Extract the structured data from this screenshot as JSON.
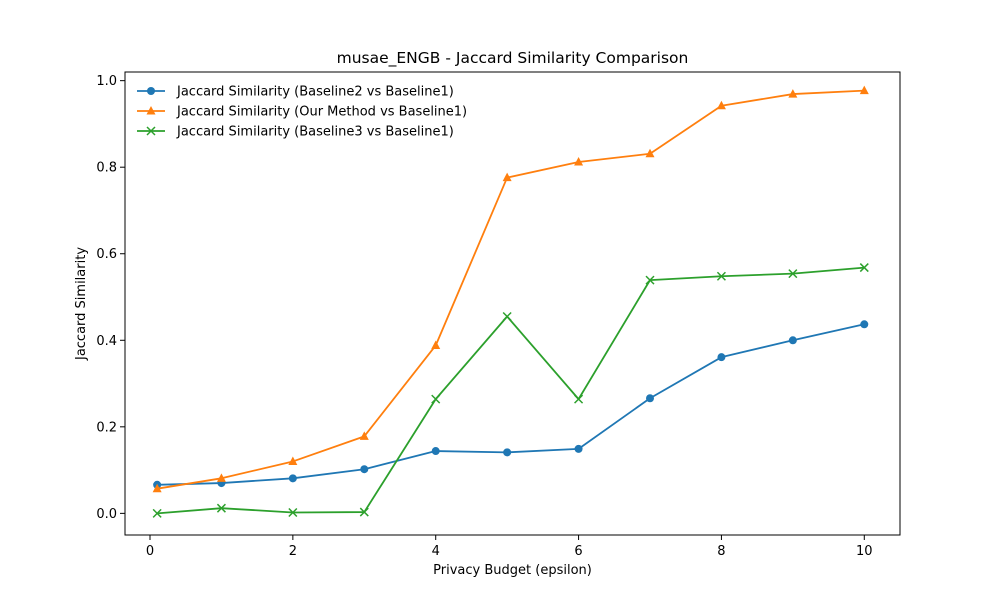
{
  "chart_data": {
    "type": "line",
    "title": "musae_ENGB - Jaccard Similarity Comparison",
    "xlabel": "Privacy Budget (epsilon)",
    "ylabel": "Jaccard Similarity",
    "xlim": [
      -0.35,
      10.5
    ],
    "ylim": [
      -0.05,
      1.02
    ],
    "xticks": [
      0,
      2,
      4,
      6,
      8,
      10
    ],
    "yticks": [
      0.0,
      0.2,
      0.4,
      0.6,
      0.8,
      1.0
    ],
    "x": [
      0.1,
      1,
      2,
      3,
      4,
      5,
      6,
      7,
      8,
      9,
      10
    ],
    "legend_position": "upper left",
    "grid": false,
    "series": [
      {
        "name": "Jaccard Similarity (Baseline2 vs Baseline1)",
        "color": "#1f77b4",
        "marker": "circle",
        "values": [
          0.066,
          0.07,
          0.081,
          0.102,
          0.144,
          0.141,
          0.149,
          0.266,
          0.361,
          0.4,
          0.437
        ]
      },
      {
        "name": "Jaccard Similarity (Our Method vs Baseline1)",
        "color": "#ff7f0e",
        "marker": "triangle",
        "values": [
          0.057,
          0.081,
          0.12,
          0.178,
          0.388,
          0.776,
          0.812,
          0.831,
          0.942,
          0.969,
          0.977
        ]
      },
      {
        "name": "Jaccard Similarity (Baseline3 vs Baseline1)",
        "color": "#2ca02c",
        "marker": "x",
        "values": [
          0.0,
          0.012,
          0.002,
          0.003,
          0.264,
          0.455,
          0.264,
          0.539,
          0.548,
          0.554,
          0.568
        ]
      }
    ]
  }
}
